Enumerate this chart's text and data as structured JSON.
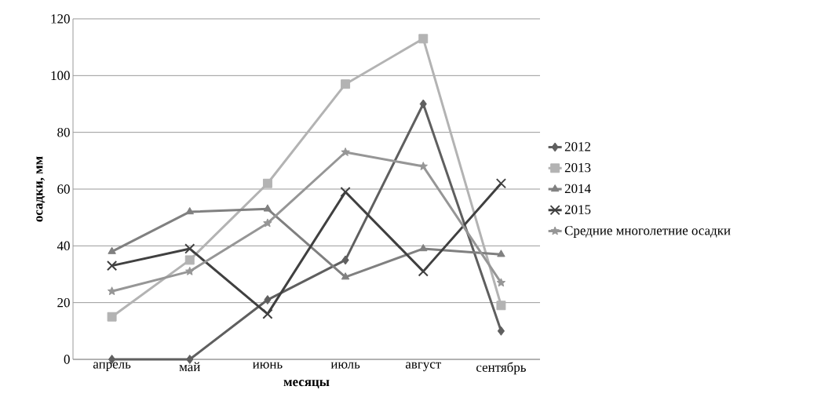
{
  "chart_data": {
    "type": "line",
    "xlabel": "месяцы",
    "ylabel": "осадки, мм",
    "categories": [
      "апрель",
      "май",
      "июнь",
      "июль",
      "август",
      "сентябрь"
    ],
    "series": [
      {
        "name": "2012",
        "color": "#5f5f5f",
        "marker": "diamond",
        "values": [
          0,
          0,
          21,
          35,
          90,
          10
        ]
      },
      {
        "name": "2013",
        "color": "#b3b3b3",
        "marker": "square",
        "values": [
          15,
          35,
          62,
          97,
          113,
          19
        ]
      },
      {
        "name": "2014",
        "color": "#808080",
        "marker": "triangle",
        "values": [
          38,
          52,
          53,
          29,
          39,
          37
        ]
      },
      {
        "name": "2015",
        "color": "#404040",
        "marker": "cross",
        "values": [
          33,
          39,
          16,
          59,
          31,
          62
        ]
      },
      {
        "name": "Средние многолетние осадки",
        "color": "#969696",
        "marker": "star",
        "values": [
          24,
          31,
          48,
          73,
          68,
          27
        ]
      }
    ],
    "ylim": [
      0,
      120
    ],
    "yticks": [
      0,
      20,
      40,
      60,
      80,
      100,
      120
    ],
    "grid": "y",
    "legend": "right",
    "line_style": "solid"
  }
}
